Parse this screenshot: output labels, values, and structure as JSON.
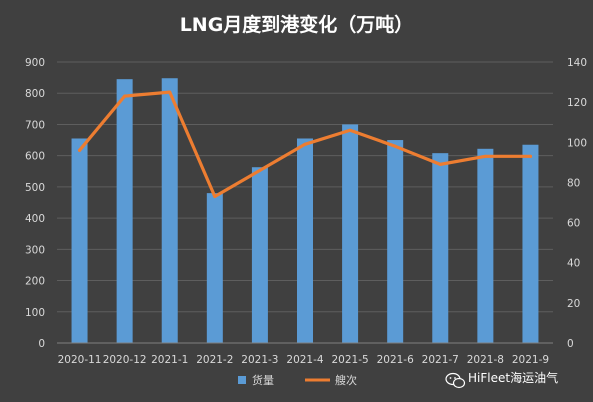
{
  "chart_data": {
    "type": "bar+line",
    "title": "LNG月度到港变化（万吨）",
    "categories": [
      "2020-11",
      "2020-12",
      "2021-1",
      "2021-2",
      "2021-3",
      "2021-4",
      "2021-5",
      "2021-6",
      "2021-7",
      "2021-8",
      "2021-9"
    ],
    "series": [
      {
        "name": "货量",
        "type": "bar",
        "axis": "left",
        "color": "#5b9bd5",
        "values": [
          655,
          845,
          848,
          480,
          563,
          655,
          700,
          650,
          608,
          622,
          635
        ]
      },
      {
        "name": "艘次",
        "type": "line",
        "axis": "right",
        "color": "#ed7d31",
        "values": [
          96,
          123,
          125,
          73,
          86,
          99,
          106,
          98,
          89,
          93,
          93
        ]
      }
    ],
    "y_left": {
      "ylim": [
        0,
        900
      ],
      "ticks": [
        0,
        100,
        200,
        300,
        400,
        500,
        600,
        700,
        800,
        900
      ]
    },
    "y_right": {
      "ylim": [
        0,
        140
      ],
      "ticks": [
        0,
        20,
        40,
        60,
        80,
        100,
        120,
        140
      ]
    },
    "grid": true,
    "legend": "bottom-center"
  },
  "watermark": {
    "text": "HiFleet海运油气",
    "icon": "wechat-icon"
  }
}
